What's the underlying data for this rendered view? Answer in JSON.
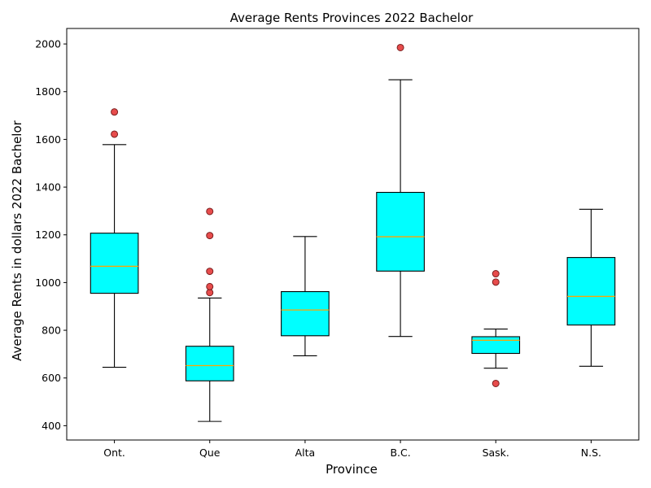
{
  "chart_data": {
    "type": "box",
    "title": "Average Rents Provinces 2022 Bachelor",
    "xlabel": "Province",
    "ylabel": "Average Rents in dollars 2022 Bachelor",
    "ylim": [
      340,
      2065
    ],
    "yticks": [
      400,
      600,
      800,
      1000,
      1200,
      1400,
      1600,
      1800,
      2000
    ],
    "grid": false,
    "colors": {
      "box_fill": "#00ffff",
      "median": "#ffa500",
      "outlier_fill": "#e74c4c",
      "outlier_edge": "#7a1f1f",
      "line": "#000000"
    },
    "categories": [
      "Ont.",
      "Que",
      "Alta",
      "B.C.",
      "Sask.",
      "N.S."
    ],
    "boxes": [
      {
        "category": "Ont.",
        "whisker_low": 645,
        "q1": 955,
        "median": 1068,
        "q3": 1207,
        "whisker_high": 1578,
        "outliers": [
          1622,
          1715
        ]
      },
      {
        "category": "Que",
        "whisker_low": 418,
        "q1": 588,
        "median": 652,
        "q3": 733,
        "whisker_high": 935,
        "outliers": [
          958,
          983,
          1047,
          1197,
          1298
        ]
      },
      {
        "category": "Alta",
        "whisker_low": 693,
        "q1": 777,
        "median": 885,
        "q3": 962,
        "whisker_high": 1193,
        "outliers": []
      },
      {
        "category": "B.C.",
        "whisker_low": 774,
        "q1": 1048,
        "median": 1192,
        "q3": 1378,
        "whisker_high": 1850,
        "outliers": [
          1985
        ]
      },
      {
        "category": "Sask.",
        "whisker_low": 641,
        "q1": 703,
        "median": 758,
        "q3": 773,
        "whisker_high": 805,
        "outliers": [
          577,
          1002,
          1037
        ]
      },
      {
        "category": "N.S.",
        "whisker_low": 649,
        "q1": 822,
        "median": 942,
        "q3": 1105,
        "whisker_high": 1307,
        "outliers": []
      }
    ]
  }
}
